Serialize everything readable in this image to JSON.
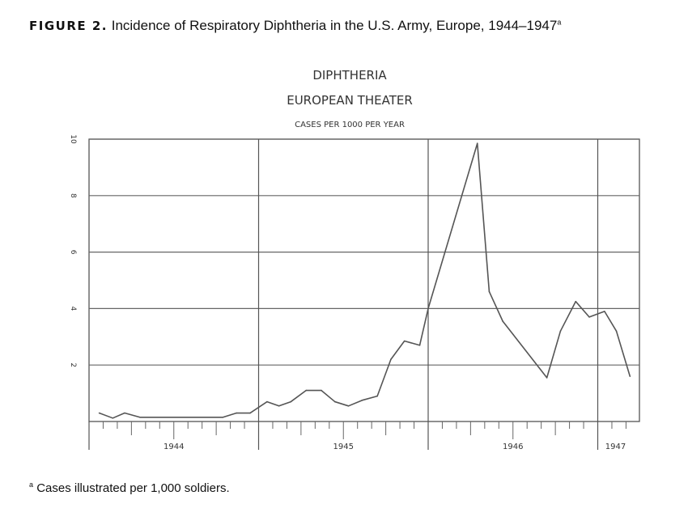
{
  "caption": {
    "figure_label": "FIGURE 2.",
    "text": "Incidence of Respiratory Diphtheria in the U.S. Army, Europe, 1944–1947",
    "marker": "a"
  },
  "footnote": {
    "marker": "a",
    "text": "Cases illustrated per 1,000 soldiers."
  },
  "chart_data": {
    "type": "line",
    "title": "DIPHTHERIA",
    "subtitle": "EUROPEAN THEATER",
    "ylabel": "CASES PER 1000 PER YEAR",
    "xlabel": "",
    "ylim": [
      0,
      10
    ],
    "xlim": [
      1944,
      1947.25
    ],
    "yticks": [
      "2",
      "4",
      "6",
      "8",
      "10"
    ],
    "xticks": [
      "1944",
      "1945",
      "1946",
      "1947"
    ],
    "grid": true,
    "line_color": "#555555",
    "x": [
      1944.06,
      1944.14,
      1944.21,
      1944.3,
      1944.79,
      1944.87,
      1944.95,
      1945.05,
      1945.12,
      1945.19,
      1945.28,
      1945.37,
      1945.45,
      1945.53,
      1945.61,
      1945.7,
      1945.78,
      1945.86,
      1945.95,
      1946.0,
      1946.29,
      1946.36,
      1946.44,
      1946.7,
      1946.78,
      1946.87,
      1946.95,
      1947.04,
      1947.11,
      1947.19
    ],
    "y": [
      0.3,
      0.12,
      0.3,
      0.15,
      0.15,
      0.3,
      0.3,
      0.7,
      0.55,
      0.7,
      1.1,
      1.1,
      0.7,
      0.55,
      0.75,
      0.9,
      2.2,
      2.85,
      2.7,
      4.0,
      9.85,
      4.6,
      3.55,
      1.55,
      3.2,
      4.25,
      3.7,
      3.9,
      3.2,
      1.6
    ]
  }
}
